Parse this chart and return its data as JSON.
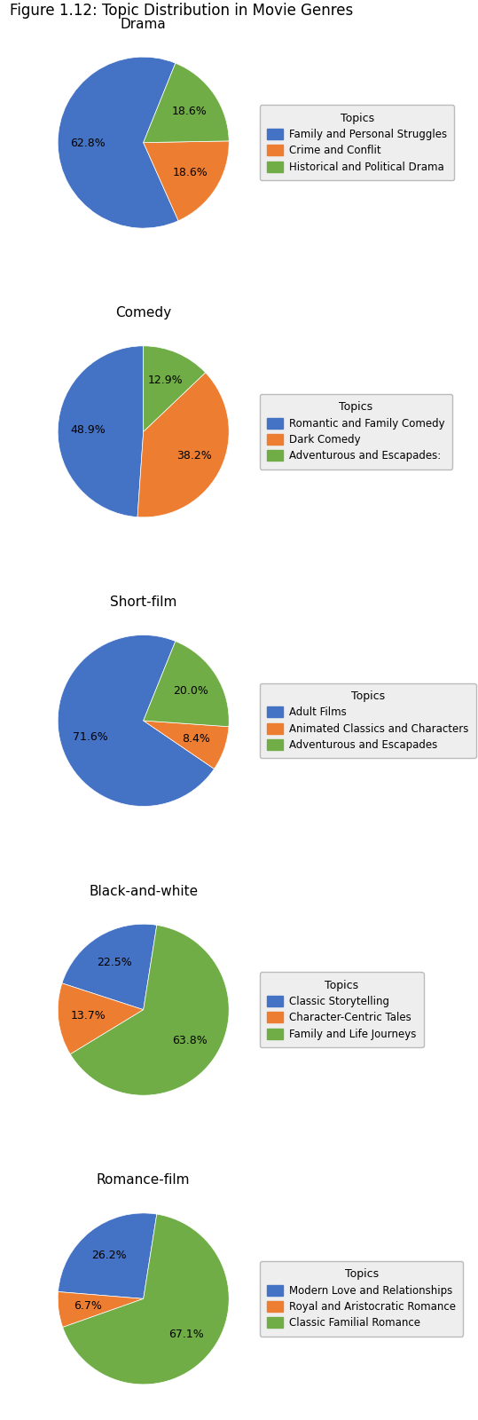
{
  "figure_title": "Figure 1.12: Topic Distribution in Movie Genres",
  "genres": [
    {
      "title": "Drama",
      "values": [
        62.8,
        18.6,
        18.6
      ],
      "labels": [
        "Family and Personal Struggles",
        "Crime and Conflit",
        "Historical and Political Drama"
      ],
      "colors": [
        "#4472c4",
        "#ed7d31",
        "#70ad47"
      ],
      "startangle": -112,
      "counterclock": true
    },
    {
      "title": "Comedy",
      "values": [
        48.9,
        38.2,
        12.9
      ],
      "labels": [
        "Romantic and Family Comedy",
        "Dark Comedy",
        "Adventurous and Escapades:"
      ],
      "colors": [
        "#4472c4",
        "#ed7d31",
        "#70ad47"
      ],
      "startangle": 90,
      "counterclock": false
    },
    {
      "title": "Short-film",
      "values": [
        71.6,
        8.4,
        20.0
      ],
      "labels": [
        "Adult Films",
        "Animated Classics and Characters",
        "Adventurous and Escapades"
      ],
      "colors": [
        "#4472c4",
        "#ed7d31",
        "#70ad47"
      ],
      "startangle": 90,
      "counterclock": false
    },
    {
      "title": "Black-and-white",
      "values": [
        22.5,
        13.7,
        63.8
      ],
      "labels": [
        "Classic Storytelling",
        "Character-Centric Tales",
        "Family and Life Journeys"
      ],
      "colors": [
        "#4472c4",
        "#ed7d31",
        "#70ad47"
      ],
      "startangle": 90,
      "counterclock": false
    },
    {
      "title": "Romance-film",
      "values": [
        26.2,
        6.7,
        67.1
      ],
      "labels": [
        "Modern Love and Relationships",
        "Royal and Aristocratic Romance",
        "Classic Familial Romance"
      ],
      "colors": [
        "#4472c4",
        "#ed7d31",
        "#70ad47"
      ],
      "startangle": 90,
      "counterclock": false
    }
  ],
  "legend_title": "Topics"
}
